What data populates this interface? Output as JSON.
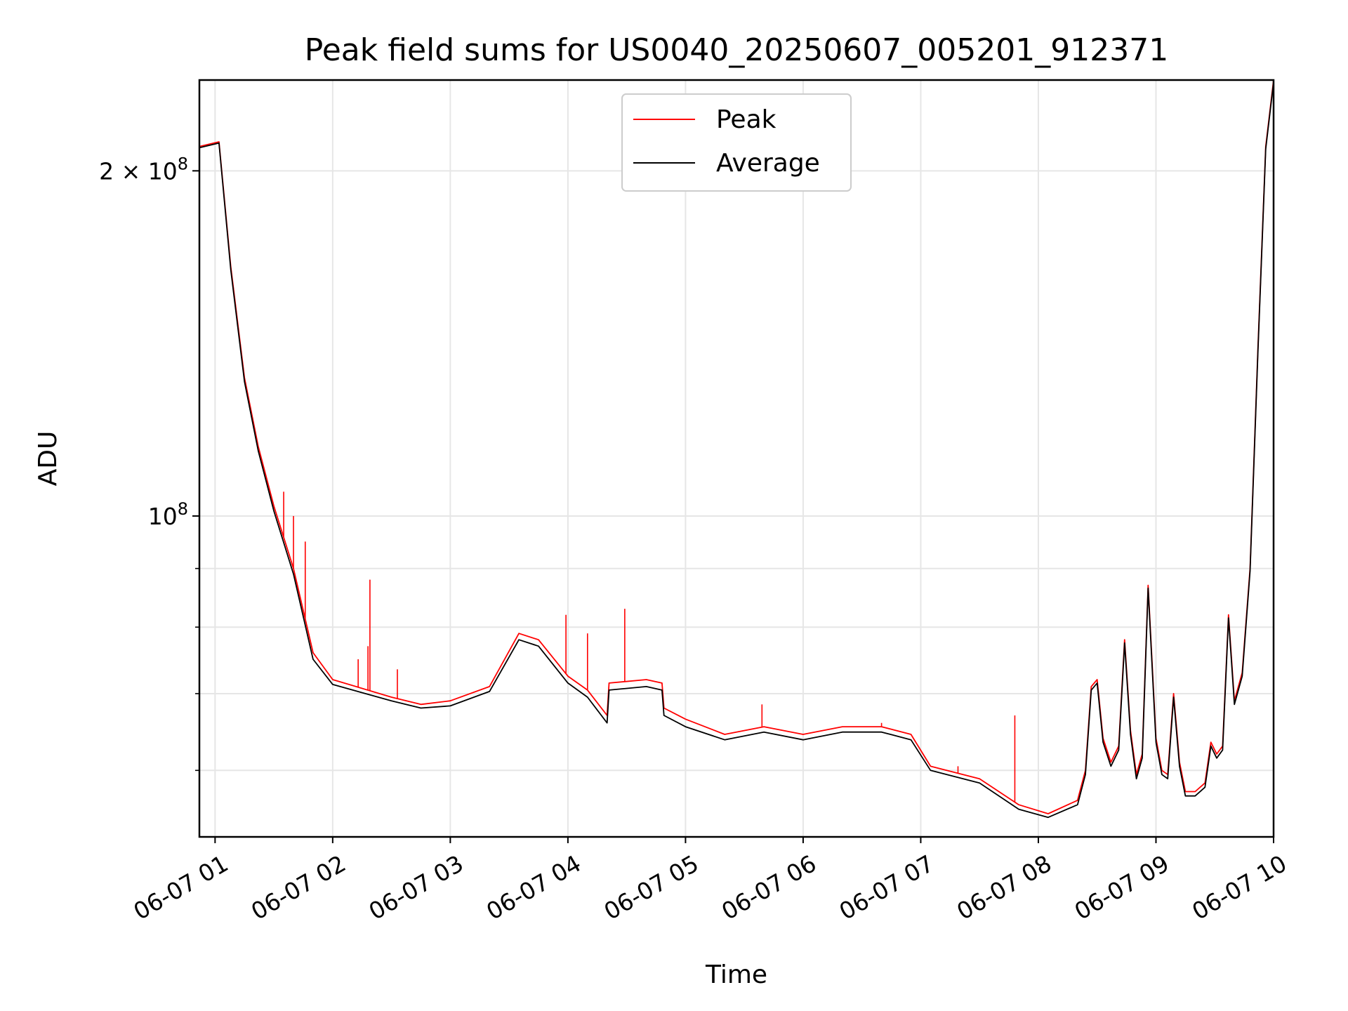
{
  "chart_data": {
    "type": "line",
    "title": "Peak field sums for US0040_20250607_005201_912371",
    "xlabel": "Time",
    "ylabel": "ADU",
    "y_scale": "log",
    "ylim": [
      52500000,
      240000000
    ],
    "xlim": [
      "2025-06-07 00:52",
      "2025-06-07 10:00"
    ],
    "grid": true,
    "legend_position": "upper center",
    "x_ticks": [
      "06-07 01",
      "06-07 02",
      "06-07 03",
      "06-07 04",
      "06-07 05",
      "06-07 06",
      "06-07 07",
      "06-07 08",
      "06-07 09",
      "06-07 10"
    ],
    "y_ticks": [
      {
        "value": 200000000,
        "label_base": "2 × 10",
        "label_exp": "8"
      },
      {
        "value": 100000000,
        "label_base": "10",
        "label_exp": "8"
      }
    ],
    "y_minor_ticks": [
      60000000,
      70000000,
      80000000,
      90000000
    ],
    "series": [
      {
        "name": "Peak",
        "color": "#ff0000",
        "points": [
          [
            "2025-06-07 00:52",
            210000000
          ],
          [
            "2025-06-07 01:02",
            212000000
          ],
          [
            "2025-06-07 01:08",
            165000000
          ],
          [
            "2025-06-07 01:15",
            132000000
          ],
          [
            "2025-06-07 01:22",
            115000000
          ],
          [
            "2025-06-07 01:30",
            102000000
          ],
          [
            "2025-06-07 01:40",
            90000000
          ],
          [
            "2025-06-07 01:50",
            76000000
          ],
          [
            "2025-06-07 02:00",
            72000000
          ],
          [
            "2025-06-07 02:30",
            69500000
          ],
          [
            "2025-06-07 02:45",
            68500000
          ],
          [
            "2025-06-07 03:00",
            69000000
          ],
          [
            "2025-06-07 03:20",
            71000000
          ],
          [
            "2025-06-07 03:35",
            79000000
          ],
          [
            "2025-06-07 03:45",
            78000000
          ],
          [
            "2025-06-07 04:00",
            72500000
          ],
          [
            "2025-06-07 04:10",
            70500000
          ],
          [
            "2025-06-07 04:20",
            67000000
          ],
          [
            "2025-06-07 04:21",
            71500000
          ],
          [
            "2025-06-07 04:40",
            72000000
          ],
          [
            "2025-06-07 04:48",
            71500000
          ],
          [
            "2025-06-07 04:49",
            68000000
          ],
          [
            "2025-06-07 05:00",
            66500000
          ],
          [
            "2025-06-07 05:20",
            64500000
          ],
          [
            "2025-06-07 05:40",
            65500000
          ],
          [
            "2025-06-07 06:00",
            64500000
          ],
          [
            "2025-06-07 06:20",
            65500000
          ],
          [
            "2025-06-07 06:40",
            65500000
          ],
          [
            "2025-06-07 06:55",
            64500000
          ],
          [
            "2025-06-07 07:05",
            60500000
          ],
          [
            "2025-06-07 07:30",
            59000000
          ],
          [
            "2025-06-07 07:50",
            56000000
          ],
          [
            "2025-06-07 08:05",
            55000000
          ],
          [
            "2025-06-07 08:20",
            56500000
          ],
          [
            "2025-06-07 08:24",
            60000000
          ],
          [
            "2025-06-07 08:27",
            71000000
          ],
          [
            "2025-06-07 08:30",
            72000000
          ],
          [
            "2025-06-07 08:33",
            64000000
          ],
          [
            "2025-06-07 08:37",
            61000000
          ],
          [
            "2025-06-07 08:41",
            63000000
          ],
          [
            "2025-06-07 08:44",
            78000000
          ],
          [
            "2025-06-07 08:47",
            65000000
          ],
          [
            "2025-06-07 08:50",
            59500000
          ],
          [
            "2025-06-07 08:53",
            62000000
          ],
          [
            "2025-06-07 08:56",
            87000000
          ],
          [
            "2025-06-07 09:00",
            64000000
          ],
          [
            "2025-06-07 09:03",
            60000000
          ],
          [
            "2025-06-07 09:06",
            59500000
          ],
          [
            "2025-06-07 09:09",
            70000000
          ],
          [
            "2025-06-07 09:12",
            61000000
          ],
          [
            "2025-06-07 09:15",
            57500000
          ],
          [
            "2025-06-07 09:20",
            57500000
          ],
          [
            "2025-06-07 09:25",
            58500000
          ],
          [
            "2025-06-07 09:28",
            63500000
          ],
          [
            "2025-06-07 09:31",
            62000000
          ],
          [
            "2025-06-07 09:34",
            63000000
          ],
          [
            "2025-06-07 09:37",
            82000000
          ],
          [
            "2025-06-07 09:40",
            69000000
          ],
          [
            "2025-06-07 09:44",
            73000000
          ],
          [
            "2025-06-07 09:48",
            90000000
          ],
          [
            "2025-06-07 09:52",
            140000000
          ],
          [
            "2025-06-07 09:56",
            210000000
          ],
          [
            "2025-06-07 10:00",
            240000000
          ]
        ]
      },
      {
        "name": "Average",
        "color": "#000000",
        "points": [
          [
            "2025-06-07 00:52",
            209500000
          ],
          [
            "2025-06-07 01:02",
            211500000
          ],
          [
            "2025-06-07 01:08",
            164000000
          ],
          [
            "2025-06-07 01:15",
            131000000
          ],
          [
            "2025-06-07 01:22",
            114000000
          ],
          [
            "2025-06-07 01:30",
            101000000
          ],
          [
            "2025-06-07 01:40",
            89000000
          ],
          [
            "2025-06-07 01:50",
            75000000
          ],
          [
            "2025-06-07 02:00",
            71300000
          ],
          [
            "2025-06-07 02:30",
            69000000
          ],
          [
            "2025-06-07 02:45",
            68000000
          ],
          [
            "2025-06-07 03:00",
            68300000
          ],
          [
            "2025-06-07 03:20",
            70300000
          ],
          [
            "2025-06-07 03:35",
            78000000
          ],
          [
            "2025-06-07 03:45",
            77000000
          ],
          [
            "2025-06-07 04:00",
            71500000
          ],
          [
            "2025-06-07 04:10",
            69500000
          ],
          [
            "2025-06-07 04:20",
            66000000
          ],
          [
            "2025-06-07 04:21",
            70500000
          ],
          [
            "2025-06-07 04:40",
            71000000
          ],
          [
            "2025-06-07 04:48",
            70500000
          ],
          [
            "2025-06-07 04:49",
            67000000
          ],
          [
            "2025-06-07 05:00",
            65500000
          ],
          [
            "2025-06-07 05:20",
            63800000
          ],
          [
            "2025-06-07 05:40",
            64800000
          ],
          [
            "2025-06-07 06:00",
            63800000
          ],
          [
            "2025-06-07 06:20",
            64800000
          ],
          [
            "2025-06-07 06:40",
            64800000
          ],
          [
            "2025-06-07 06:55",
            63800000
          ],
          [
            "2025-06-07 07:05",
            60000000
          ],
          [
            "2025-06-07 07:30",
            58500000
          ],
          [
            "2025-06-07 07:50",
            55500000
          ],
          [
            "2025-06-07 08:05",
            54600000
          ],
          [
            "2025-06-07 08:20",
            56000000
          ],
          [
            "2025-06-07 08:24",
            59500000
          ],
          [
            "2025-06-07 08:27",
            70500000
          ],
          [
            "2025-06-07 08:30",
            71500000
          ],
          [
            "2025-06-07 08:33",
            63500000
          ],
          [
            "2025-06-07 08:37",
            60500000
          ],
          [
            "2025-06-07 08:41",
            62500000
          ],
          [
            "2025-06-07 08:44",
            77500000
          ],
          [
            "2025-06-07 08:47",
            64500000
          ],
          [
            "2025-06-07 08:50",
            59000000
          ],
          [
            "2025-06-07 08:53",
            61500000
          ],
          [
            "2025-06-07 08:56",
            86500000
          ],
          [
            "2025-06-07 09:00",
            63500000
          ],
          [
            "2025-06-07 09:03",
            59500000
          ],
          [
            "2025-06-07 09:06",
            59000000
          ],
          [
            "2025-06-07 09:09",
            69500000
          ],
          [
            "2025-06-07 09:12",
            60500000
          ],
          [
            "2025-06-07 09:15",
            57000000
          ],
          [
            "2025-06-07 09:20",
            57000000
          ],
          [
            "2025-06-07 09:25",
            58000000
          ],
          [
            "2025-06-07 09:28",
            63000000
          ],
          [
            "2025-06-07 09:31",
            61500000
          ],
          [
            "2025-06-07 09:34",
            62500000
          ],
          [
            "2025-06-07 09:37",
            81500000
          ],
          [
            "2025-06-07 09:40",
            68500000
          ],
          [
            "2025-06-07 09:44",
            72500000
          ],
          [
            "2025-06-07 09:48",
            89500000
          ],
          [
            "2025-06-07 09:52",
            139000000
          ],
          [
            "2025-06-07 09:56",
            209000000
          ],
          [
            "2025-06-07 10:00",
            239000000
          ]
        ]
      }
    ],
    "spikes": [
      [
        "2025-06-07 01:35",
        105000000
      ],
      [
        "2025-06-07 01:40",
        100000000
      ],
      [
        "2025-06-07 01:46",
        95000000
      ],
      [
        "2025-06-07 02:13",
        75000000
      ],
      [
        "2025-06-07 02:18",
        77000000
      ],
      [
        "2025-06-07 02:19",
        88000000
      ],
      [
        "2025-06-07 02:33",
        73500000
      ],
      [
        "2025-06-07 03:59",
        82000000
      ],
      [
        "2025-06-07 04:10",
        79000000
      ],
      [
        "2025-06-07 04:29",
        83000000
      ],
      [
        "2025-06-07 05:39",
        68500000
      ],
      [
        "2025-06-07 07:48",
        67000000
      ],
      [
        "2025-06-07 07:19",
        60500000
      ],
      [
        "2025-06-07 06:40",
        66000000
      ]
    ]
  }
}
